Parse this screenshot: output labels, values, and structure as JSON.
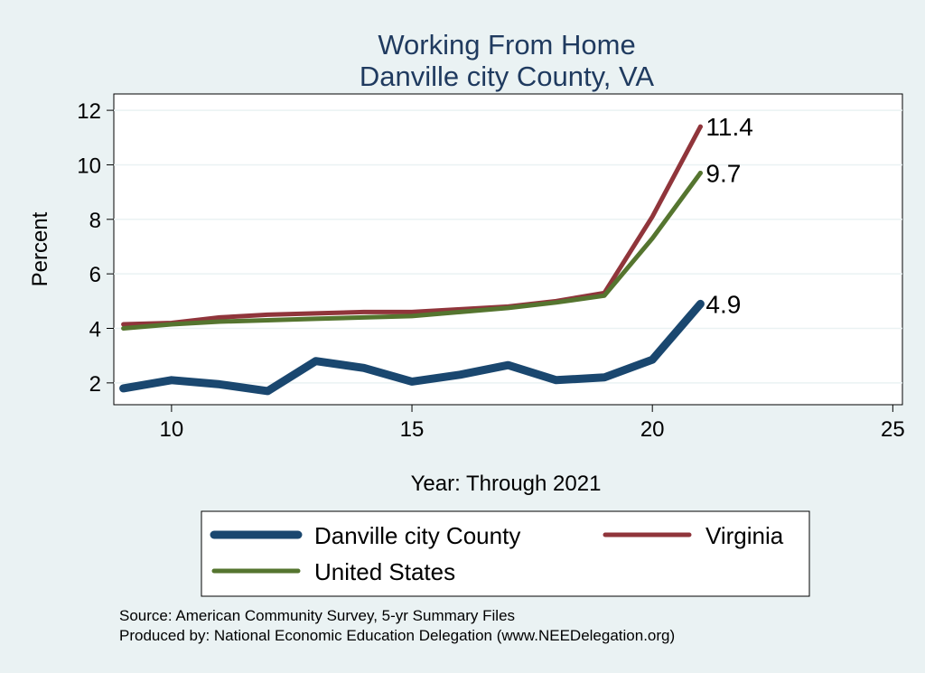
{
  "chart_data": {
    "type": "line",
    "title": "Working From Home",
    "subtitle": "Danville city County, VA",
    "xlabel": "Year: Through 2021",
    "ylabel": "Percent",
    "xlim": [
      8.8,
      25.2
    ],
    "ylim": [
      1.2,
      12.6
    ],
    "xticks": [
      10,
      15,
      20,
      25
    ],
    "yticks": [
      2,
      4,
      6,
      8,
      10,
      12
    ],
    "grid": true,
    "legend_position": "bottom",
    "series": [
      {
        "name": "Danville city County",
        "color": "#1a476f",
        "x": [
          9,
          10,
          11,
          12,
          13,
          14,
          15,
          16,
          17,
          18,
          19,
          20,
          21
        ],
        "y": [
          1.8,
          2.1,
          1.95,
          1.7,
          2.8,
          2.55,
          2.05,
          2.3,
          2.65,
          2.1,
          2.2,
          2.85,
          4.9
        ],
        "end_label": "4.9"
      },
      {
        "name": "Virginia",
        "color": "#90353b",
        "x": [
          9,
          10,
          11,
          12,
          13,
          14,
          15,
          16,
          17,
          18,
          19,
          20,
          21
        ],
        "y": [
          4.15,
          4.2,
          4.4,
          4.5,
          4.55,
          4.6,
          4.6,
          4.7,
          4.8,
          5.0,
          5.3,
          8.1,
          11.4
        ],
        "end_label": "11.4"
      },
      {
        "name": "United States",
        "color": "#55752f",
        "x": [
          9,
          10,
          11,
          12,
          13,
          14,
          15,
          16,
          17,
          18,
          19,
          20,
          21
        ],
        "y": [
          4.0,
          4.15,
          4.25,
          4.3,
          4.35,
          4.4,
          4.45,
          4.6,
          4.75,
          4.95,
          5.2,
          7.3,
          9.7
        ],
        "end_label": "9.7"
      }
    ]
  },
  "source": {
    "line1": "Source: American Community Survey, 5-yr Summary Files",
    "line2": "Produced by: National Economic Education Delegation (www.NEEDelegation.org)"
  }
}
